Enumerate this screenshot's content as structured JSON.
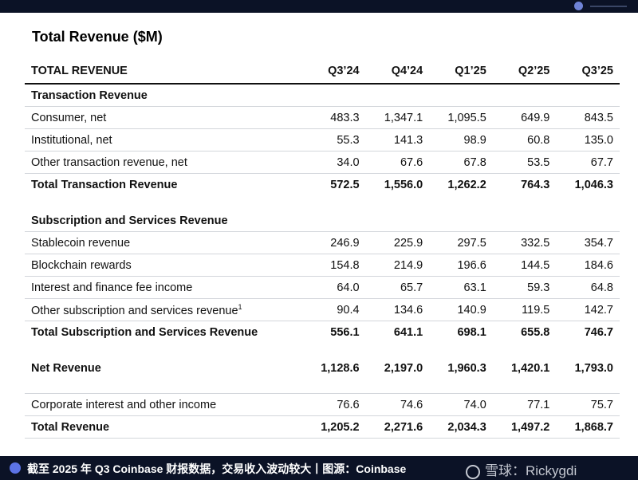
{
  "title": "Total Revenue ($M)",
  "header": {
    "label": "TOTAL REVENUE",
    "quarters": [
      "Q3’24",
      "Q4’24",
      "Q1’25",
      "Q2’25",
      "Q3’25"
    ]
  },
  "transaction": {
    "heading": "Transaction Revenue",
    "rows": [
      {
        "label": "Consumer, net",
        "values": [
          "483.3",
          "1,347.1",
          "1,095.5",
          "649.9",
          "843.5"
        ]
      },
      {
        "label": "Institutional, net",
        "values": [
          "55.3",
          "141.3",
          "98.9",
          "60.8",
          "135.0"
        ]
      },
      {
        "label": "Other transaction revenue, net",
        "values": [
          "34.0",
          "67.6",
          "67.8",
          "53.5",
          "67.7"
        ]
      }
    ],
    "total": {
      "label": "Total Transaction Revenue",
      "values": [
        "572.5",
        "1,556.0",
        "1,262.2",
        "764.3",
        "1,046.3"
      ]
    }
  },
  "subscription": {
    "heading": "Subscription and Services Revenue",
    "rows": [
      {
        "label": "Stablecoin revenue",
        "values": [
          "246.9",
          "225.9",
          "297.5",
          "332.5",
          "354.7"
        ]
      },
      {
        "label": "Blockchain rewards",
        "values": [
          "154.8",
          "214.9",
          "196.6",
          "144.5",
          "184.6"
        ]
      },
      {
        "label": "Interest and finance fee income",
        "values": [
          "64.0",
          "65.7",
          "63.1",
          "59.3",
          "64.8"
        ]
      },
      {
        "label": "Other subscription and services revenue",
        "footnote": "1",
        "values": [
          "90.4",
          "134.6",
          "140.9",
          "119.5",
          "142.7"
        ]
      }
    ],
    "total": {
      "label": "Total Subscription and Services Revenue",
      "values": [
        "556.1",
        "641.1",
        "698.1",
        "655.8",
        "746.7"
      ]
    }
  },
  "net_revenue": {
    "label": "Net Revenue",
    "values": [
      "1,128.6",
      "2,197.0",
      "1,960.3",
      "1,420.1",
      "1,793.0"
    ]
  },
  "corporate": {
    "label": "Corporate interest and other income",
    "values": [
      "76.6",
      "74.6",
      "74.0",
      "77.1",
      "75.7"
    ]
  },
  "total_revenue": {
    "label": "Total Revenue",
    "values": [
      "1,205.2",
      "2,271.6",
      "2,034.3",
      "1,497.2",
      "1,868.7"
    ]
  },
  "caption": "截至 2025 年 Q3 Coinbase 财报数据，交易收入波动较大丨图源：Coinbase",
  "watermark": "雪球：Rickygdi",
  "colors": {
    "background": "#0b1226",
    "accent": "#5c73e6",
    "text": "#111111"
  }
}
